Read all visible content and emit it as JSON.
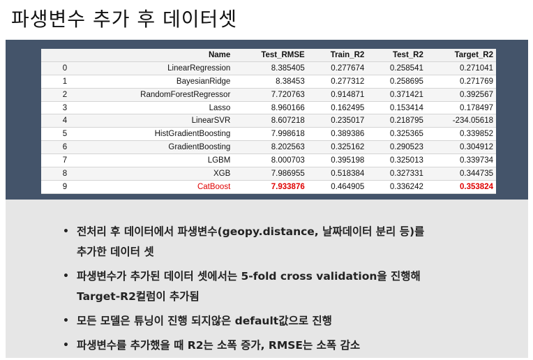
{
  "title": "파생변수 추가 후 데이터셋",
  "table": {
    "headers": [
      "",
      "Name",
      "Test_RMSE",
      "Train_R2",
      "Test_R2",
      "Target_R2"
    ],
    "rows": [
      [
        "0",
        "LinearRegression",
        "8.385405",
        "0.277674",
        "0.258541",
        "0.271041"
      ],
      [
        "1",
        "BayesianRidge",
        "8.38453",
        "0.277312",
        "0.258695",
        "0.271769"
      ],
      [
        "2",
        "RandomForestRegressor",
        "7.720763",
        "0.914871",
        "0.371421",
        "0.392567"
      ],
      [
        "3",
        "Lasso",
        "8.960166",
        "0.162495",
        "0.153414",
        "0.178497"
      ],
      [
        "4",
        "LinearSVR",
        "8.607218",
        "0.235017",
        "0.218795",
        "-234.05618"
      ],
      [
        "5",
        "HistGradientBoosting",
        "7.998618",
        "0.389386",
        "0.325365",
        "0.339852"
      ],
      [
        "6",
        "GradientBoosting",
        "8.202563",
        "0.325162",
        "0.290523",
        "0.304912"
      ],
      [
        "7",
        "LGBM",
        "8.000703",
        "0.395198",
        "0.325013",
        "0.339734"
      ],
      [
        "8",
        "XGB",
        "7.986955",
        "0.518384",
        "0.327331",
        "0.344735"
      ],
      [
        "9",
        "CatBoost",
        "7.933876",
        "0.464905",
        "0.336242",
        "0.353824"
      ]
    ],
    "highlight_row": 9,
    "highlight_color": "#e00000"
  },
  "bullets": [
    {
      "line1": "전처리 후 데이터에서 파생변수(geopy.distance, 날짜데이터 분리 등)를",
      "line2": "추가한 데이터 셋"
    },
    {
      "line1": "파생변수가 추가된 데이터 셋에서는 5-fold cross validation을 진행해",
      "line2": "Target-R2컬럼이 추가됨"
    },
    {
      "line1": "모든 모델은 튜닝이 진행 되지않은 default값으로 진행",
      "line2": null
    },
    {
      "line1": "파생변수를 추가했을 때 R2는 소폭 증가,  RMSE는 소폭 감소",
      "line2": null
    }
  ],
  "colors": {
    "dark_band": "#44546a",
    "light_band": "#e6e6e6"
  }
}
